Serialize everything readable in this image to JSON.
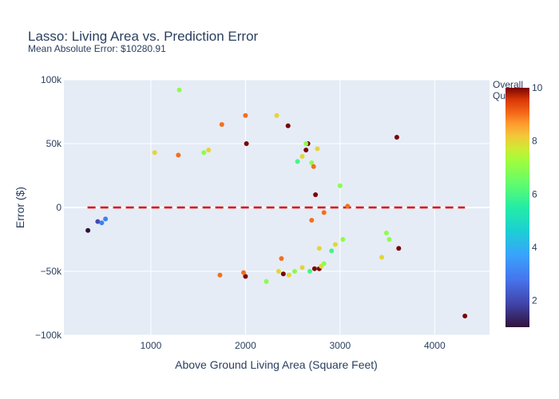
{
  "chart_data": {
    "type": "scatter",
    "title": "Lasso: Living Area vs. Prediction Error",
    "subtitle": "Mean Absolute Error: $10280.91",
    "xlabel": "Above Ground Living Area (Square Feet)",
    "ylabel": "Error ($)",
    "xlim": [
      80,
      4580
    ],
    "ylim": [
      -100000,
      100000
    ],
    "x_ticks": [
      1000,
      2000,
      3000,
      4000
    ],
    "x_tick_labels": [
      "1000",
      "2000",
      "3000",
      "4000"
    ],
    "y_ticks": [
      -100000,
      -50000,
      0,
      50000,
      100000
    ],
    "y_tick_labels": [
      "−100k",
      "−50k",
      "0",
      "50k",
      "100k"
    ],
    "grid": true,
    "reference_line": {
      "y": 0,
      "x_range": [
        330,
        4320
      ],
      "color": "#dd0000",
      "style": "dashed"
    },
    "colorbar": {
      "title_line1": "Overall",
      "title_line2": "Quality",
      "min": 1,
      "max": 10,
      "ticks": [
        2,
        4,
        6,
        8,
        10
      ],
      "tick_labels": [
        "2",
        "4",
        "6",
        "8",
        "10"
      ],
      "colorscale": "Turbo"
    },
    "points": [
      [
        334,
        -18000,
        1
      ],
      [
        438,
        -11000,
        2
      ],
      [
        480,
        -12000,
        3
      ],
      [
        520,
        -9000,
        3
      ],
      [
        1300,
        92000,
        7
      ],
      [
        1750,
        65000,
        9
      ],
      [
        2000,
        72000,
        9
      ],
      [
        2330,
        72000,
        8
      ],
      [
        2450,
        64000,
        10
      ],
      [
        2010,
        50000,
        10
      ],
      [
        2660,
        50000,
        10
      ],
      [
        2640,
        50000,
        7
      ],
      [
        3600,
        55000,
        10
      ],
      [
        4320,
        -85000,
        10
      ],
      [
        3620,
        -32000,
        10
      ],
      [
        3490,
        -20000,
        7
      ],
      [
        3440,
        -39000,
        8
      ],
      [
        3520,
        -25000,
        7
      ],
      [
        3000,
        17000,
        7
      ],
      [
        3080,
        1000,
        9
      ],
      [
        2780,
        -48000,
        10
      ],
      [
        2730,
        -48000,
        10
      ],
      [
        2800,
        -46000,
        8
      ],
      [
        2830,
        -44000,
        7
      ],
      [
        2520,
        -50000,
        7
      ],
      [
        2680,
        -50000,
        6
      ],
      [
        2600,
        -47000,
        8
      ],
      [
        2460,
        -53000,
        8
      ],
      [
        2400,
        -52000,
        10
      ],
      [
        2380,
        -40000,
        9
      ],
      [
        2350,
        -50000,
        8
      ],
      [
        2220,
        -58000,
        7
      ],
      [
        2000,
        -54000,
        10
      ],
      [
        1980,
        -51000,
        9
      ],
      [
        1730,
        -53000,
        9
      ],
      [
        2700,
        -10000,
        9
      ],
      [
        2740,
        10000,
        10
      ],
      [
        2830,
        -4000,
        9
      ],
      [
        2780,
        -32000,
        8
      ],
      [
        2910,
        -34000,
        6
      ],
      [
        2950,
        -29000,
        8
      ],
      [
        3030,
        -25000,
        7
      ],
      [
        2640,
        45000,
        10
      ],
      [
        2760,
        46000,
        8
      ],
      [
        2700,
        35000,
        7
      ],
      [
        2720,
        32000,
        9
      ],
      [
        2600,
        40000,
        8
      ],
      [
        2550,
        36000,
        6
      ],
      [
        1610,
        45000,
        8
      ],
      [
        1560,
        43000,
        7
      ],
      [
        1040,
        43000,
        8
      ],
      [
        1290,
        41000,
        9
      ]
    ]
  }
}
